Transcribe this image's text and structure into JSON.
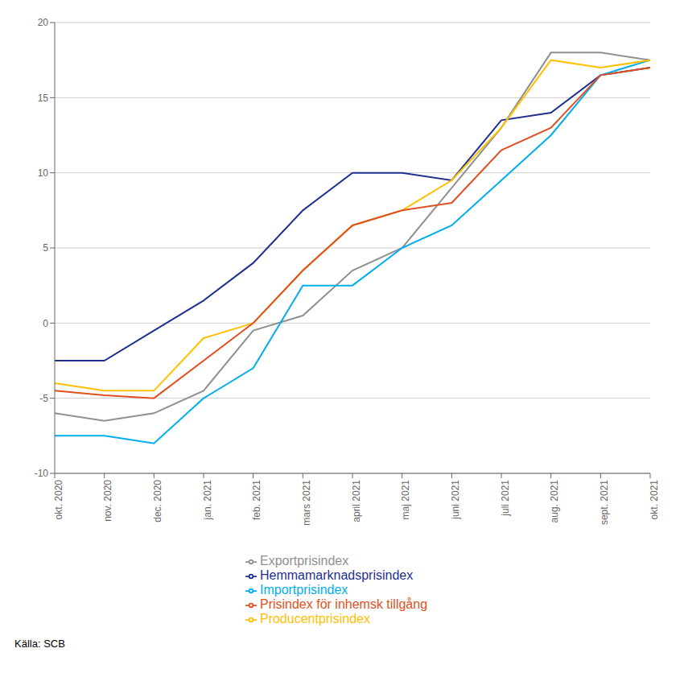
{
  "chart_data": {
    "type": "line",
    "categories": [
      "okt. 2020",
      "nov. 2020",
      "dec. 2020",
      "jan. 2021",
      "feb. 2021",
      "mars 2021",
      "april 2021",
      "maj 2021",
      "juni 2021",
      "juli 2021",
      "aug. 2021",
      "sept. 2021",
      "okt. 2021"
    ],
    "series": [
      {
        "name": "Hemmamarknadsprisindex",
        "color": "#1F2F8F",
        "values": [
          -2.5,
          -2.5,
          -0.5,
          1.5,
          4.0,
          7.5,
          10.0,
          10.0,
          9.5,
          13.5,
          14.0,
          16.5,
          17.0
        ]
      },
      {
        "name": "Exportprisindex",
        "color": "#909090",
        "values": [
          -6.0,
          -6.5,
          -6.0,
          -4.5,
          -0.5,
          0.5,
          3.5,
          5.0,
          9.0,
          13.0,
          18.0,
          18.0,
          17.5
        ]
      },
      {
        "name": "Importprisindex",
        "color": "#00AEEF",
        "values": [
          -7.5,
          -7.5,
          -8.0,
          -5.0,
          -3.0,
          2.5,
          2.5,
          5.0,
          6.5,
          9.5,
          12.5,
          16.5,
          17.5
        ]
      },
      {
        "name": "Producentprisindex",
        "color": "#FFC000",
        "values": [
          -4.0,
          -4.5,
          -4.5,
          -1.0,
          0.0,
          3.5,
          6.5,
          7.5,
          9.5,
          13.0,
          17.5,
          17.0,
          17.5
        ]
      },
      {
        "name": "Prisindex för inhemsk tillgång",
        "color": "#E05020",
        "values": [
          -4.5,
          -4.8,
          -5.0,
          -2.5,
          0.0,
          3.5,
          6.5,
          7.5,
          8.0,
          11.5,
          13.0,
          16.5,
          17.0
        ]
      }
    ],
    "ylim": [
      -10,
      20
    ],
    "yticks": [
      -10,
      -5,
      0,
      5,
      10,
      15,
      20
    ],
    "grid": true,
    "legend": "bottom",
    "annotations": [
      "Källa: SCB"
    ]
  }
}
